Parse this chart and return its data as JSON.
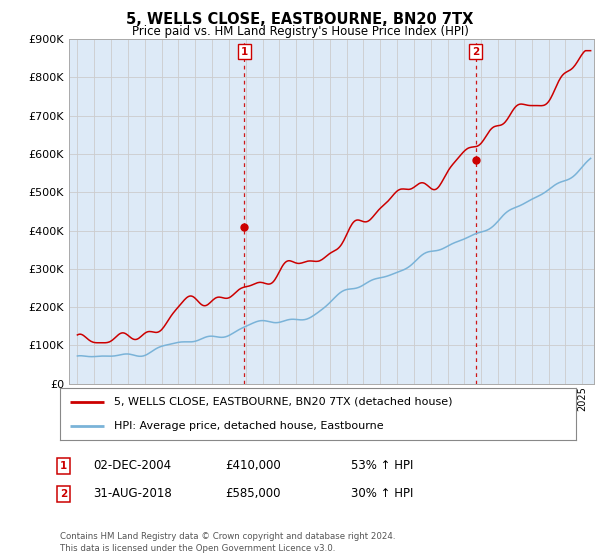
{
  "title": "5, WELLS CLOSE, EASTBOURNE, BN20 7TX",
  "subtitle": "Price paid vs. HM Land Registry's House Price Index (HPI)",
  "ylim": [
    0,
    900000
  ],
  "xlim_start": 1994.5,
  "xlim_end": 2025.7,
  "hpi_color": "#7ab3d8",
  "price_color": "#cc0000",
  "vline_color": "#cc0000",
  "grid_color": "#cccccc",
  "bg_color": "#ddeaf7",
  "sale1_x": 2004.92,
  "sale1_y": 410000,
  "sale1_label": "1",
  "sale2_x": 2018.67,
  "sale2_y": 585000,
  "sale2_label": "2",
  "legend_line1": "5, WELLS CLOSE, EASTBOURNE, BN20 7TX (detached house)",
  "legend_line2": "HPI: Average price, detached house, Eastbourne",
  "annotation1_num": "1",
  "annotation1_date": "02-DEC-2004",
  "annotation1_price": "£410,000",
  "annotation1_pct": "53% ↑ HPI",
  "annotation2_num": "2",
  "annotation2_date": "31-AUG-2018",
  "annotation2_price": "£585,000",
  "annotation2_pct": "30% ↑ HPI",
  "footer": "Contains HM Land Registry data © Crown copyright and database right 2024.\nThis data is licensed under the Open Government Licence v3.0."
}
